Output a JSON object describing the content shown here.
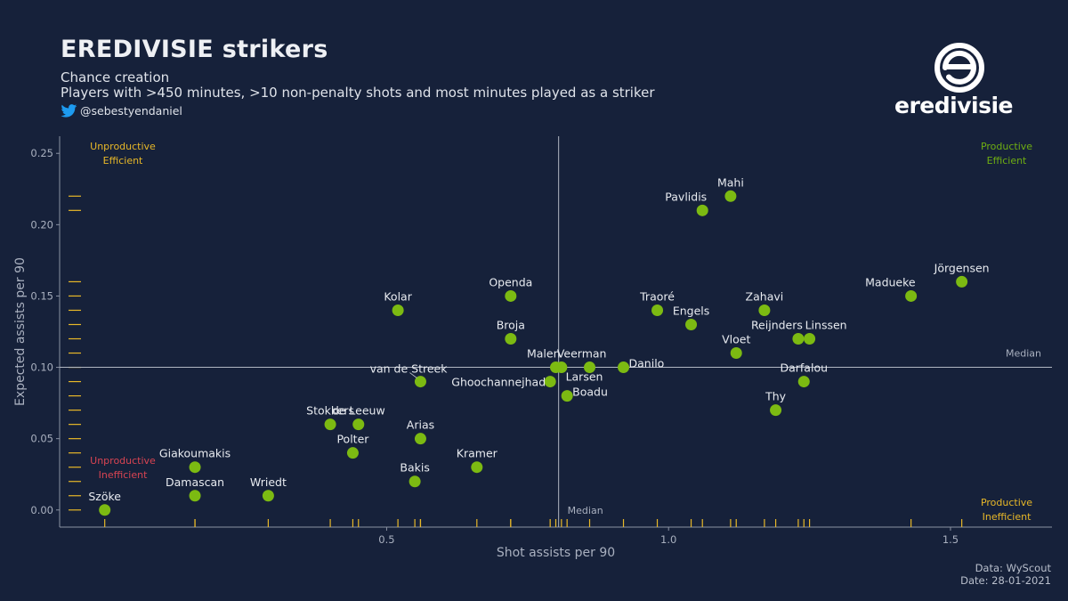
{
  "header": {
    "title": "EREDIVISIE strikers",
    "subtitle1": "Chance creation",
    "subtitle2": "Players with >450 minutes, >10 non-penalty shots and most minutes played as a striker",
    "handle": "@sebestyendaniel",
    "twitter_icon": "twitter-bird-icon"
  },
  "logo": {
    "text": "eredivisie",
    "icon": "eredivisie-logo-icon"
  },
  "footer": {
    "source": "Data: WyScout",
    "date": "Date: 28-01-2021"
  },
  "colors": {
    "background": "#16213a",
    "point": "#7cba12",
    "rug": "#e8b828",
    "median_line": "#b0b6c2",
    "productive": "#6fae12",
    "unproductive": "#d94452",
    "efficient": "#e8b828"
  },
  "chart_data": {
    "type": "scatter",
    "xlabel": "Shot assists per 90",
    "ylabel": "Expected assists per 90",
    "xlim": [
      -0.08,
      1.68
    ],
    "ylim": [
      -0.012,
      0.262
    ],
    "xticks": [
      0.5,
      1.0,
      1.5
    ],
    "xtick_labels": [
      "0.5",
      "1.0",
      "1.5"
    ],
    "yticks": [
      0.0,
      0.05,
      0.1,
      0.15,
      0.2,
      0.25
    ],
    "ytick_labels": [
      "0.00",
      "0.05",
      "0.10",
      "0.15",
      "0.20",
      "0.25"
    ],
    "median_x": 0.805,
    "median_y": 0.1,
    "median_label_x": "Median",
    "median_label_y": "Median",
    "grid": false,
    "rug": true,
    "quadrants": [
      {
        "position": "top-left",
        "line1": "Unproductive",
        "line2": "Efficient",
        "color1": "#e8b828",
        "color2": "#e8b828"
      },
      {
        "position": "top-right",
        "line1": "Productive",
        "line2": "Efficient",
        "color1": "#6fae12",
        "color2": "#6fae12"
      },
      {
        "position": "bottom-left",
        "line1": "Unproductive",
        "line2": "Inefficient",
        "color1": "#d94452",
        "color2": "#d94452"
      },
      {
        "position": "bottom-right",
        "line1": "Productive",
        "line2": "Inefficient",
        "color1": "#e8b828",
        "color2": "#e8b828"
      }
    ],
    "points": [
      {
        "name": "Mahi",
        "x": 1.11,
        "y": 0.22,
        "anchor": "middle",
        "pos": "above"
      },
      {
        "name": "Pavlidis",
        "x": 1.06,
        "y": 0.21,
        "anchor": "end",
        "pos": "above"
      },
      {
        "name": "Jörgensen",
        "x": 1.52,
        "y": 0.16,
        "anchor": "middle",
        "pos": "above"
      },
      {
        "name": "Madueke",
        "x": 1.43,
        "y": 0.15,
        "anchor": "end",
        "pos": "above"
      },
      {
        "name": "Openda",
        "x": 0.72,
        "y": 0.15,
        "anchor": "middle",
        "pos": "above"
      },
      {
        "name": "Kolar",
        "x": 0.52,
        "y": 0.14,
        "anchor": "middle",
        "pos": "above"
      },
      {
        "name": "Traoré",
        "x": 0.98,
        "y": 0.14,
        "anchor": "middle",
        "pos": "above"
      },
      {
        "name": "Zahavi",
        "x": 1.17,
        "y": 0.14,
        "anchor": "middle",
        "pos": "above"
      },
      {
        "name": "Engels",
        "x": 1.04,
        "y": 0.13,
        "anchor": "middle",
        "pos": "above"
      },
      {
        "name": "Broja",
        "x": 0.72,
        "y": 0.12,
        "anchor": "middle",
        "pos": "above"
      },
      {
        "name": "Reijnders",
        "x": 1.23,
        "y": 0.12,
        "anchor": "end",
        "pos": "above"
      },
      {
        "name": "Linssen",
        "x": 1.25,
        "y": 0.12,
        "anchor": "start",
        "pos": "above"
      },
      {
        "name": "Vloet",
        "x": 1.12,
        "y": 0.11,
        "anchor": "middle",
        "pos": "above"
      },
      {
        "name": "Malen",
        "x": 0.8,
        "y": 0.1,
        "anchor": "end",
        "pos": "above"
      },
      {
        "name": "Veerman",
        "x": 0.81,
        "y": 0.1,
        "anchor": "start",
        "pos": "above"
      },
      {
        "name": "Larsen",
        "x": 0.86,
        "y": 0.1,
        "anchor": "middle",
        "pos": "below"
      },
      {
        "name": "Danilo",
        "x": 0.92,
        "y": 0.1,
        "anchor": "start",
        "pos": "right"
      },
      {
        "name": "Darfalou",
        "x": 1.24,
        "y": 0.09,
        "anchor": "middle",
        "pos": "above"
      },
      {
        "name": "van de Streek",
        "x": 0.56,
        "y": 0.09,
        "anchor": "end",
        "pos": "above-left"
      },
      {
        "name": "Ghoochannejhad",
        "x": 0.79,
        "y": 0.09,
        "anchor": "end",
        "pos": "left"
      },
      {
        "name": "Boadu",
        "x": 0.82,
        "y": 0.08,
        "anchor": "start",
        "pos": "right"
      },
      {
        "name": "Thy",
        "x": 1.19,
        "y": 0.07,
        "anchor": "middle",
        "pos": "above"
      },
      {
        "name": "Stokkers",
        "x": 0.4,
        "y": 0.06,
        "anchor": "middle",
        "pos": "above"
      },
      {
        "name": "de Leeuw",
        "x": 0.45,
        "y": 0.06,
        "anchor": "middle",
        "pos": "above"
      },
      {
        "name": "Arias",
        "x": 0.56,
        "y": 0.05,
        "anchor": "middle",
        "pos": "above"
      },
      {
        "name": "Polter",
        "x": 0.44,
        "y": 0.04,
        "anchor": "middle",
        "pos": "above"
      },
      {
        "name": "Giakoumakis",
        "x": 0.16,
        "y": 0.03,
        "anchor": "middle",
        "pos": "above"
      },
      {
        "name": "Kramer",
        "x": 0.66,
        "y": 0.03,
        "anchor": "middle",
        "pos": "above"
      },
      {
        "name": "Bakis",
        "x": 0.55,
        "y": 0.02,
        "anchor": "middle",
        "pos": "above"
      },
      {
        "name": "Damascan",
        "x": 0.16,
        "y": 0.01,
        "anchor": "middle",
        "pos": "above"
      },
      {
        "name": "Wriedt",
        "x": 0.29,
        "y": 0.01,
        "anchor": "middle",
        "pos": "above"
      },
      {
        "name": "Szöke",
        "x": 0.0,
        "y": 0.0,
        "anchor": "middle",
        "pos": "above"
      }
    ]
  }
}
